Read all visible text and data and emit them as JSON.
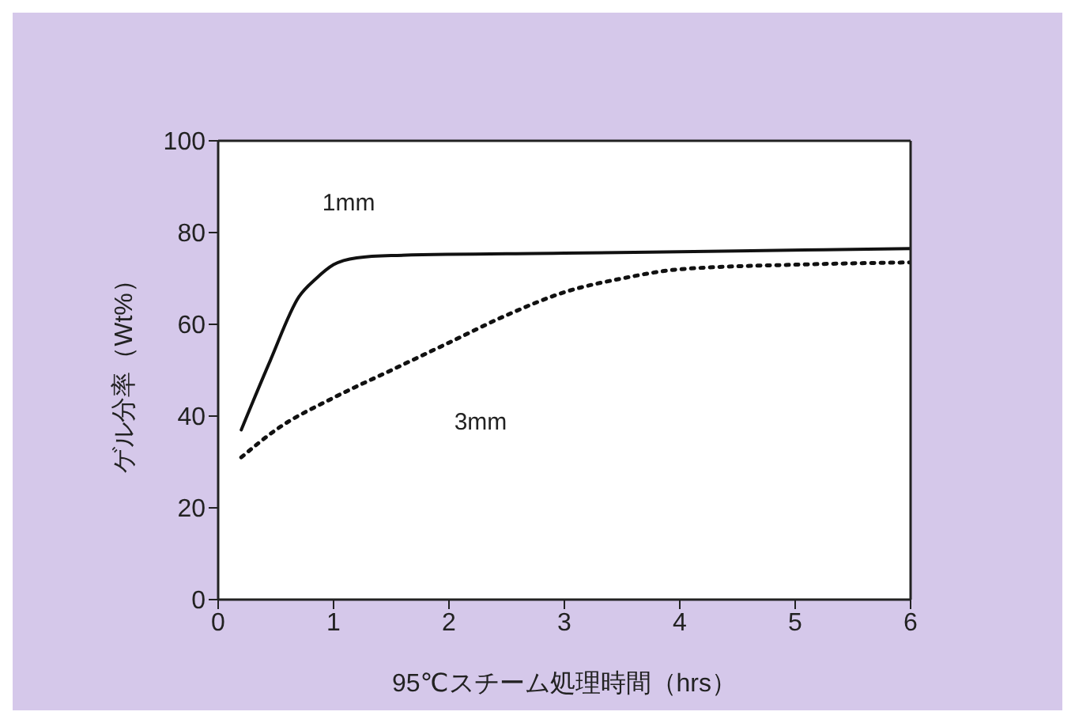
{
  "chart_data": {
    "type": "line",
    "xlabel": "95℃スチーム処理時間（hrs）",
    "ylabel": "ゲル分率（Wt%）",
    "xlim": [
      0,
      6
    ],
    "xticks": [
      0,
      1,
      2,
      3,
      4,
      5,
      6
    ],
    "ylim": [
      0,
      100
    ],
    "yticks": [
      0,
      20,
      40,
      60,
      80,
      100
    ],
    "marker": "none",
    "series": [
      {
        "name": "1mm",
        "color": "#111111",
        "line_style": "solid",
        "x": [
          0.2,
          0.45,
          0.7,
          0.85,
          1.0,
          1.2,
          1.5,
          3,
          4.5,
          6
        ],
        "values": [
          37,
          52,
          66,
          70,
          73,
          74.5,
          75,
          75.5,
          76,
          76.5
        ]
      },
      {
        "name": "3mm",
        "color": "#111111",
        "line_style": "dotted",
        "x": [
          0.2,
          0.5,
          1,
          1.5,
          2,
          2.5,
          3,
          3.5,
          4,
          5,
          6
        ],
        "values": [
          31,
          37,
          44,
          50,
          56,
          62,
          67,
          70,
          72,
          73,
          73.5
        ]
      }
    ]
  }
}
